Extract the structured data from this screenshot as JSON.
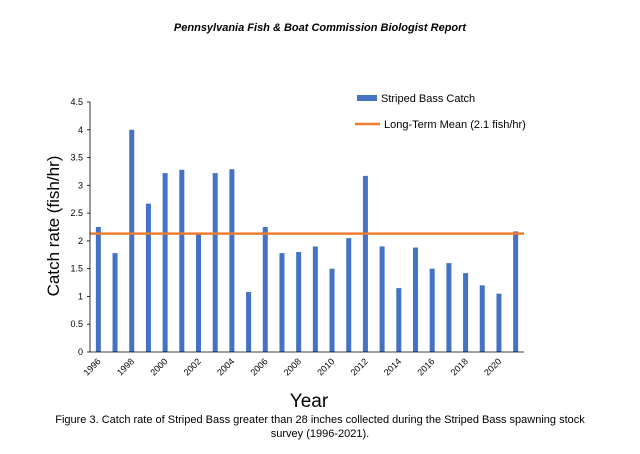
{
  "header": "Pennsylvania Fish & Boat Commission Biologist Report",
  "caption": "Figure 3. Catch rate of Striped Bass greater than 28 inches collected during the Striped Bass spawning stock survey (1996-2021).",
  "colors": {
    "bar": "#4472c4",
    "mean_line": "#ed7d31",
    "axis": "#000000"
  },
  "chart_data": {
    "type": "bar",
    "categories": [
      "1996",
      "1997",
      "1998",
      "1999",
      "2000",
      "2001",
      "2002",
      "2003",
      "2004",
      "2005",
      "2006",
      "2007",
      "2008",
      "2009",
      "2010",
      "2011",
      "2012",
      "2013",
      "2014",
      "2015",
      "2016",
      "2017",
      "2018",
      "2019",
      "2020",
      "2021"
    ],
    "x_tick_labels": [
      "1996",
      "1998",
      "2000",
      "2002",
      "2004",
      "2006",
      "2008",
      "2010",
      "2012",
      "2014",
      "2016",
      "2018",
      "2020"
    ],
    "series": [
      {
        "name": "Striped Bass Catch",
        "values": [
          2.25,
          1.78,
          4.0,
          2.67,
          3.22,
          3.28,
          2.15,
          3.22,
          3.29,
          1.08,
          2.25,
          1.78,
          1.8,
          1.9,
          1.5,
          2.05,
          3.17,
          1.9,
          1.15,
          1.88,
          1.5,
          1.6,
          1.42,
          1.2,
          1.05,
          2.17
        ]
      }
    ],
    "reference_line": {
      "name": "Long-Term Mean (2.1 fish/hr)",
      "value": 2.13
    },
    "title": "",
    "xlabel": "Year",
    "ylabel": "Catch rate (fish/hr)",
    "ylim": [
      0,
      4.5
    ],
    "y_ticks": [
      "0",
      "0.5",
      "1",
      "1.5",
      "2",
      "2.5",
      "3",
      "3.5",
      "4",
      "4.5"
    ],
    "legend_position": "top-right"
  }
}
